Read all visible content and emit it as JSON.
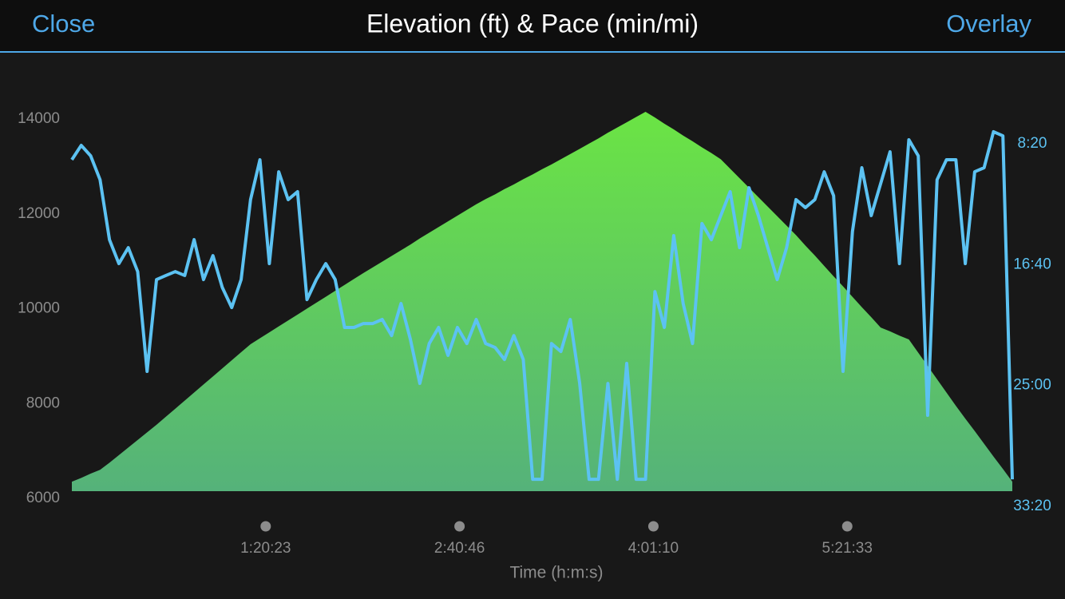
{
  "header": {
    "left_button": "Close",
    "title": "Elevation (ft) & Pace (min/mi)",
    "right_button": "Overlay"
  },
  "chart_data": {
    "type": "area-line",
    "xlabel": "Time (h:m:s)",
    "x": [
      0,
      234,
      468,
      702,
      936,
      1170,
      1404,
      1638,
      1872,
      2106,
      2340,
      2574,
      2808,
      3042,
      3276,
      3510,
      3744,
      3978,
      4212,
      4446,
      4680,
      4914,
      5148,
      5382,
      5616,
      5850,
      6084,
      6318,
      6552,
      6786,
      7020,
      7254,
      7488,
      7722,
      7956,
      8190,
      8424,
      8658,
      8892,
      9126,
      9360,
      9594,
      9828,
      10062,
      10296,
      10530,
      10764,
      10998,
      11232,
      11466,
      11700,
      11934,
      12168,
      12402,
      12636,
      12870,
      13104,
      13338,
      13572,
      13806,
      14040,
      14274,
      14508,
      14742,
      14976,
      15210,
      15444,
      15678,
      15912,
      16146,
      16380,
      16614,
      16848,
      17082,
      17316,
      17550,
      17784,
      18018,
      18252,
      18486,
      18720,
      18954,
      19188,
      19422,
      19656,
      19890,
      20124,
      20358,
      20592,
      20826,
      21060,
      21294,
      21528,
      21762,
      21996,
      22230,
      22464,
      22698,
      22932,
      23166,
      23400
    ],
    "xlim": [
      0,
      23400
    ],
    "xticks": [
      {
        "value": 4823,
        "label": "1:20:23"
      },
      {
        "value": 9646,
        "label": "2:40:46"
      },
      {
        "value": 14470,
        "label": "4:01:10"
      },
      {
        "value": 19293,
        "label": "5:21:33"
      }
    ],
    "ylim": [
      6000,
      14000
    ],
    "yticks": [
      6000,
      8000,
      10000,
      12000,
      14000
    ],
    "y2lim": [
      32.778,
      6.626
    ],
    "y2ticks": [
      {
        "value": 8.333,
        "label": "8:20"
      },
      {
        "value": 16.667,
        "label": "16:40"
      },
      {
        "value": 25,
        "label": "25:00"
      },
      {
        "value": 33.333,
        "label": "33:20"
      }
    ],
    "series": [
      {
        "type": "area",
        "color": "#6be444",
        "values": [
          6200,
          6280,
          6370,
          6450,
          6600,
          6760,
          6920,
          7080,
          7240,
          7400,
          7570,
          7740,
          7910,
          8080,
          8250,
          8420,
          8590,
          8760,
          8930,
          9100,
          9225,
          9350,
          9475,
          9600,
          9725,
          9850,
          9975,
          10100,
          10225,
          10350,
          10475,
          10600,
          10720,
          10840,
          10960,
          11080,
          11200,
          11330,
          11450,
          11570,
          11690,
          11810,
          11930,
          12050,
          12160,
          12260,
          12370,
          12470,
          12580,
          12680,
          12790,
          12890,
          13000,
          13110,
          13220,
          13330,
          13440,
          13560,
          13670,
          13780,
          13890,
          14000,
          13880,
          13750,
          13630,
          13500,
          13380,
          13250,
          13130,
          13000,
          12800,
          12600,
          12400,
          12200,
          12000,
          11800,
          11600,
          11400,
          11180,
          10970,
          10750,
          10530,
          10320,
          10100,
          9880,
          9670,
          9450,
          9370,
          9280,
          9200,
          8920,
          8640,
          8360,
          8080,
          7800,
          7530,
          7270,
          7000,
          6730,
          6470,
          6200
        ]
      },
      {
        "type": "line",
        "axis": "y2",
        "color": "#5cc2f2",
        "values": [
          9.93,
          8.94,
          9.66,
          11.31,
          15.44,
          17.09,
          15.99,
          17.64,
          24.52,
          18.19,
          17.91,
          17.64,
          17.91,
          15.44,
          18.19,
          16.54,
          18.74,
          20.12,
          18.19,
          12.68,
          9.93,
          17.09,
          10.76,
          12.68,
          12.13,
          19.57,
          18.19,
          17.09,
          18.19,
          21.49,
          21.49,
          21.22,
          21.22,
          20.94,
          22.05,
          19.84,
          22.32,
          25.35,
          22.6,
          21.49,
          23.42,
          21.49,
          22.6,
          20.94,
          22.6,
          22.87,
          23.7,
          22.05,
          23.7,
          31.96,
          31.96,
          22.6,
          23.15,
          20.94,
          25.35,
          31.96,
          31.96,
          25.35,
          31.96,
          23.97,
          31.96,
          31.96,
          19.02,
          21.49,
          15.16,
          19.84,
          22.6,
          14.33,
          15.44,
          13.78,
          12.13,
          15.99,
          11.86,
          13.78,
          15.99,
          18.19,
          15.99,
          12.68,
          13.23,
          12.68,
          10.76,
          12.41,
          24.52,
          14.89,
          10.48,
          13.78,
          11.58,
          9.38,
          17.09,
          8.55,
          9.66,
          27.55,
          11.31,
          9.93,
          9.93,
          17.09,
          10.76,
          10.48,
          8.0,
          8.28,
          31.96
        ]
      }
    ]
  }
}
